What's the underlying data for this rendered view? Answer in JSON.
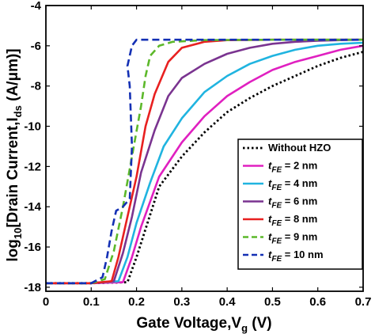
{
  "chart_data": {
    "type": "line",
    "xlabel_main": "Gate Voltage,V",
    "xlabel_sub": "g",
    "xlabel_tail": " (V)",
    "ylabel_pre": "log",
    "ylabel_pre_sub": "10",
    "ylabel_main": "[Drain Current,I",
    "ylabel_sub": "ds",
    "ylabel_tail": " (A/μm)]",
    "xlim": [
      0,
      0.7
    ],
    "ylim": [
      -18.2,
      -4
    ],
    "xticks": [
      "0",
      "0.1",
      "0.2",
      "0.3",
      "0.4",
      "0.5",
      "0.6",
      "0.7"
    ],
    "xtick_values": [
      0,
      0.1,
      0.2,
      0.3,
      0.4,
      0.5,
      0.6,
      0.7
    ],
    "yticks": [
      "-4",
      "-6",
      "-8",
      "-10",
      "-12",
      "-14",
      "-16",
      "-18"
    ],
    "ytick_values": [
      -4,
      -6,
      -8,
      -10,
      -12,
      -14,
      -16,
      -18
    ],
    "grid": false,
    "legend_position": "lower-right",
    "series": [
      {
        "name": "Without HZO",
        "name_prefix": "",
        "name_sub": "",
        "color": "#000000",
        "dash": "dotted",
        "x": [
          0,
          0.1,
          0.18,
          0.2,
          0.25,
          0.3,
          0.35,
          0.4,
          0.45,
          0.5,
          0.55,
          0.6,
          0.65,
          0.7
        ],
        "y": [
          -17.8,
          -17.8,
          -17.75,
          -16.5,
          -13.0,
          -11.5,
          -10.3,
          -9.3,
          -8.6,
          -8.0,
          -7.5,
          -7.0,
          -6.6,
          -6.3
        ]
      },
      {
        "name": " = 2 nm",
        "name_prefix": "t",
        "name_sub": "FE",
        "color": "#e020c0",
        "dash": "solid",
        "x": [
          0,
          0.1,
          0.17,
          0.19,
          0.21,
          0.25,
          0.3,
          0.35,
          0.4,
          0.45,
          0.5,
          0.55,
          0.6,
          0.65,
          0.7
        ],
        "y": [
          -17.8,
          -17.8,
          -17.75,
          -16.5,
          -15.0,
          -12.5,
          -10.8,
          -9.5,
          -8.5,
          -7.8,
          -7.2,
          -6.8,
          -6.5,
          -6.2,
          -6.0
        ]
      },
      {
        "name": " = 4 nm",
        "name_prefix": "t",
        "name_sub": "FE",
        "color": "#20b4e0",
        "dash": "solid",
        "x": [
          0,
          0.1,
          0.16,
          0.18,
          0.2,
          0.23,
          0.26,
          0.3,
          0.35,
          0.4,
          0.45,
          0.5,
          0.55,
          0.6,
          0.65,
          0.7
        ],
        "y": [
          -17.8,
          -17.8,
          -17.7,
          -16.5,
          -14.8,
          -12.8,
          -11.0,
          -9.6,
          -8.3,
          -7.5,
          -6.9,
          -6.5,
          -6.2,
          -6.0,
          -5.9,
          -5.85
        ]
      },
      {
        "name": " = 6 nm",
        "name_prefix": "t",
        "name_sub": "FE",
        "color": "#7a3490",
        "dash": "solid",
        "x": [
          0,
          0.1,
          0.15,
          0.17,
          0.19,
          0.21,
          0.24,
          0.27,
          0.3,
          0.35,
          0.4,
          0.45,
          0.5,
          0.55,
          0.6,
          0.65,
          0.7
        ],
        "y": [
          -17.8,
          -17.8,
          -17.7,
          -16.3,
          -14.5,
          -12.3,
          -10.2,
          -8.5,
          -7.6,
          -6.9,
          -6.4,
          -6.1,
          -5.9,
          -5.8,
          -5.75,
          -5.72,
          -5.7
        ]
      },
      {
        "name": " = 8 nm",
        "name_prefix": "t",
        "name_sub": "FE",
        "color": "#e82020",
        "dash": "solid",
        "x": [
          0,
          0.1,
          0.145,
          0.16,
          0.18,
          0.2,
          0.22,
          0.24,
          0.27,
          0.3,
          0.35,
          0.4,
          0.5,
          0.6,
          0.7
        ],
        "y": [
          -17.8,
          -17.8,
          -17.7,
          -16.5,
          -14.5,
          -12.5,
          -10.0,
          -8.4,
          -6.8,
          -6.1,
          -5.8,
          -5.72,
          -5.7,
          -5.7,
          -5.7
        ]
      },
      {
        "name": " = 9 nm",
        "name_prefix": "t",
        "name_sub": "FE",
        "color": "#5cb82a",
        "dash": "dashed",
        "x": [
          0,
          0.1,
          0.13,
          0.15,
          0.17,
          0.19,
          0.21,
          0.22,
          0.23,
          0.25,
          0.28,
          0.35,
          0.5,
          0.7
        ],
        "y": [
          -17.8,
          -17.8,
          -17.6,
          -16.2,
          -14.0,
          -11.5,
          -9.0,
          -7.5,
          -6.5,
          -6.0,
          -5.8,
          -5.72,
          -5.7,
          -5.7
        ]
      },
      {
        "name": " = 10 nm",
        "name_prefix": "t",
        "name_sub": "FE",
        "color": "#1430b4",
        "dash": "dashed",
        "x": [
          0,
          0.1,
          0.125,
          0.135,
          0.145,
          0.155,
          0.17,
          0.185,
          0.19,
          0.185,
          0.18,
          0.19,
          0.2,
          0.3,
          0.5,
          0.7
        ],
        "y": [
          -17.8,
          -17.8,
          -17.5,
          -16.5,
          -15.2,
          -14.2,
          -14.0,
          -13.6,
          -11.0,
          -8.0,
          -7.0,
          -6.0,
          -5.7,
          -5.7,
          -5.7,
          -5.7
        ]
      }
    ]
  }
}
